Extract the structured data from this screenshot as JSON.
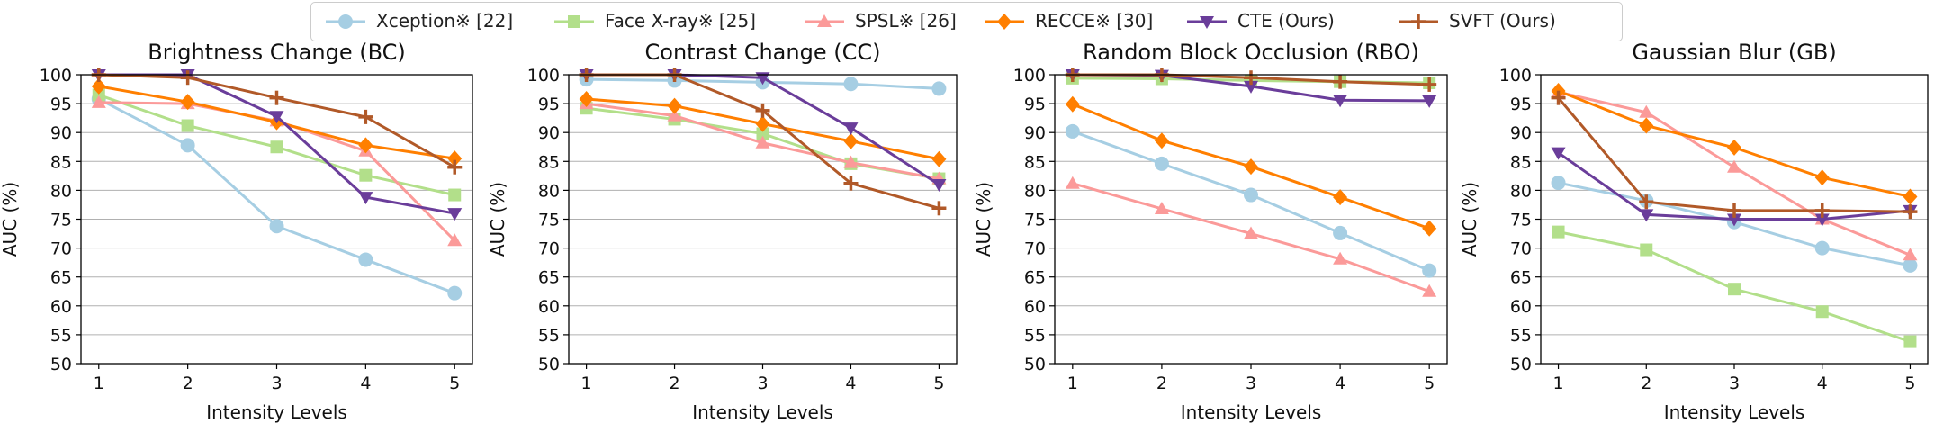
{
  "chart_data": [
    {
      "type": "line",
      "title": "Brightness Change (BC)",
      "xlabel": "Intensity Levels",
      "ylabel": "AUC (%)",
      "x": [
        1,
        2,
        3,
        4,
        5
      ],
      "ylim": [
        50,
        100
      ],
      "yticks": [
        50,
        55,
        60,
        65,
        70,
        75,
        80,
        85,
        90,
        95,
        100
      ],
      "grid": "horizontal",
      "series": [
        {
          "name": "Xception※ [22]",
          "values": [
            95.8,
            87.8,
            73.8,
            68.0,
            62.2
          ]
        },
        {
          "name": "Face X-ray※ [25]",
          "values": [
            96.5,
            91.2,
            87.5,
            82.6,
            79.2
          ]
        },
        {
          "name": "SPSL※ [26]",
          "values": [
            95.2,
            95.0,
            92.0,
            86.8,
            71.3
          ]
        },
        {
          "name": "RECCE※ [30]",
          "values": [
            98.0,
            95.3,
            91.8,
            87.8,
            85.5
          ]
        },
        {
          "name": "CTE (Ours)",
          "values": [
            100.0,
            100.0,
            92.8,
            78.8,
            76.0
          ]
        },
        {
          "name": "SVFT (Ours)",
          "values": [
            100.0,
            99.5,
            96.0,
            92.7,
            84.0
          ]
        }
      ]
    },
    {
      "type": "line",
      "title": "Contrast Change (CC)",
      "xlabel": "Intensity Levels",
      "ylabel": "AUC (%)",
      "x": [
        1,
        2,
        3,
        4,
        5
      ],
      "ylim": [
        50,
        100
      ],
      "yticks": [
        50,
        55,
        60,
        65,
        70,
        75,
        80,
        85,
        90,
        95,
        100
      ],
      "grid": "horizontal",
      "series": [
        {
          "name": "Xception※ [22]",
          "values": [
            99.2,
            99.0,
            98.7,
            98.4,
            97.6
          ]
        },
        {
          "name": "Face X-ray※ [25]",
          "values": [
            94.2,
            92.3,
            89.8,
            84.6,
            82.0
          ]
        },
        {
          "name": "SPSL※ [26]",
          "values": [
            95.0,
            92.9,
            88.2,
            84.8,
            82.0
          ]
        },
        {
          "name": "RECCE※ [30]",
          "values": [
            95.8,
            94.6,
            91.5,
            88.5,
            85.4
          ]
        },
        {
          "name": "CTE (Ours)",
          "values": [
            100.0,
            100.0,
            99.5,
            90.8,
            81.0
          ]
        },
        {
          "name": "SVFT (Ours)",
          "values": [
            100.0,
            100.0,
            93.8,
            81.2,
            76.9
          ]
        }
      ]
    },
    {
      "type": "line",
      "title": "Random Block Occlusion (RBO)",
      "xlabel": "Intensity Levels",
      "ylabel": "AUC (%)",
      "x": [
        1,
        2,
        3,
        4,
        5
      ],
      "ylim": [
        50,
        100
      ],
      "yticks": [
        50,
        55,
        60,
        65,
        70,
        75,
        80,
        85,
        90,
        95,
        100
      ],
      "grid": "horizontal",
      "series": [
        {
          "name": "Xception※ [22]",
          "values": [
            90.2,
            84.6,
            79.2,
            72.6,
            66.1
          ]
        },
        {
          "name": "Face X-ray※ [25]",
          "values": [
            99.4,
            99.3,
            99.0,
            98.8,
            98.6
          ]
        },
        {
          "name": "SPSL※ [26]",
          "values": [
            81.2,
            76.8,
            72.5,
            68.1,
            62.5
          ]
        },
        {
          "name": "RECCE※ [30]",
          "values": [
            94.9,
            88.6,
            84.1,
            78.8,
            73.4
          ]
        },
        {
          "name": "CTE (Ours)",
          "values": [
            100.0,
            99.9,
            98.0,
            95.6,
            95.5
          ]
        },
        {
          "name": "SVFT (Ours)",
          "values": [
            100.0,
            100.0,
            99.5,
            98.8,
            98.3
          ]
        }
      ]
    },
    {
      "type": "line",
      "title": "Gaussian Blur (GB)",
      "xlabel": "Intensity Levels",
      "ylabel": "AUC (%)",
      "x": [
        1,
        2,
        3,
        4,
        5
      ],
      "ylim": [
        50,
        100
      ],
      "yticks": [
        50,
        55,
        60,
        65,
        70,
        75,
        80,
        85,
        90,
        95,
        100
      ],
      "grid": "horizontal",
      "series": [
        {
          "name": "Xception※ [22]",
          "values": [
            81.3,
            78.2,
            74.5,
            70.0,
            67.0
          ]
        },
        {
          "name": "Face X-ray※ [25]",
          "values": [
            72.8,
            69.7,
            62.9,
            59.0,
            53.8
          ]
        },
        {
          "name": "SPSL※ [26]",
          "values": [
            97.0,
            93.5,
            84.0,
            75.0,
            68.8
          ]
        },
        {
          "name": "RECCE※ [30]",
          "values": [
            97.2,
            91.2,
            87.4,
            82.2,
            78.9
          ]
        },
        {
          "name": "CTE (Ours)",
          "values": [
            86.5,
            75.8,
            75.0,
            75.0,
            76.5
          ]
        },
        {
          "name": "SVFT (Ours)",
          "values": [
            96.0,
            78.0,
            76.5,
            76.5,
            76.3
          ]
        }
      ]
    }
  ],
  "legend": {
    "placement": "top-center",
    "entries": [
      {
        "label": "Xception※ [22]",
        "color": "#a6cee3",
        "marker": "circle"
      },
      {
        "label": "Face X-ray※ [25]",
        "color": "#b2df8a",
        "marker": "square"
      },
      {
        "label": "SPSL※ [26]",
        "color": "#fb9a99",
        "marker": "triangle"
      },
      {
        "label": "RECCE※ [30]",
        "color": "#ff7f00",
        "marker": "diamond"
      },
      {
        "label": "CTE (Ours)",
        "color": "#6a3d9a",
        "marker": "triangle-down"
      },
      {
        "label": "SVFT (Ours)",
        "color": "#b15928",
        "marker": "plus"
      }
    ]
  }
}
